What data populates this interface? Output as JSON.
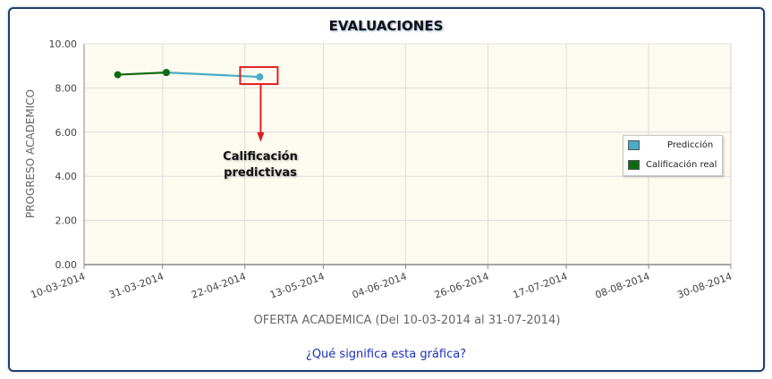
{
  "chart_data": {
    "type": "line",
    "title": "EVALUACIONES",
    "ylabel": "PROGRESO ACADEMICO",
    "xlabel": "OFERTA ACADEMICA (Del 10-03-2014 al 31-07-2014)",
    "ylim": [
      0,
      10
    ],
    "y_ticks": [
      "0.00",
      "2.00",
      "4.00",
      "6.00",
      "8.00",
      "10.00"
    ],
    "x_range": [
      "2014-03-10",
      "2014-08-30"
    ],
    "x_ticks": [
      "10-03-2014",
      "31-03-2014",
      "22-04-2014",
      "13-05-2014",
      "04-06-2014",
      "26-06-2014",
      "17-07-2014",
      "08-08-2014",
      "30-08-2014"
    ],
    "grid": true,
    "legend_position": "right",
    "series": [
      {
        "name": "Predicción",
        "color": "#4aacc5",
        "x": [
          "2014-04-01",
          "2014-04-26"
        ],
        "y": [
          8.7,
          8.5
        ]
      },
      {
        "name": "Calificación real",
        "color": "#0d6b12",
        "x": [
          "2014-03-19",
          "2014-04-01"
        ],
        "y": [
          8.6,
          8.7
        ]
      }
    ],
    "annotation": {
      "text_line1": "Calificación",
      "text_line2": "predictivas",
      "target_x": "2014-04-26",
      "target_y": 8.5,
      "box_color": "#e02020"
    }
  },
  "link_text": "¿Qué significa esta gráfica?"
}
